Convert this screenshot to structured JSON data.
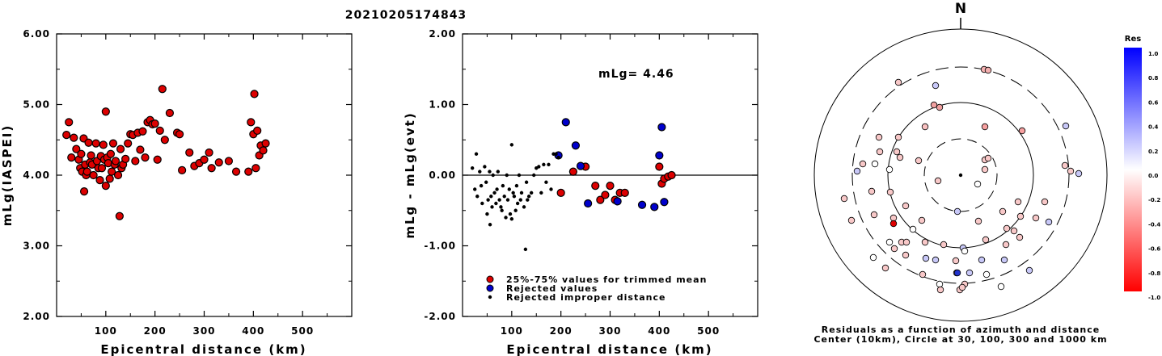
{
  "title": "20210205174843",
  "chart_data": [
    {
      "type": "scatter",
      "xlabel": "Epicentral distance (km)",
      "ylabel": "mLg(IASPEI)",
      "xlim": [
        0,
        600
      ],
      "ylim": [
        2.0,
        6.0
      ],
      "xticks": [
        "100",
        "200",
        "300",
        "400",
        "500"
      ],
      "yticks": [
        "2.00",
        "3.00",
        "4.00",
        "5.00",
        "6.00"
      ],
      "grid": false,
      "series": [
        {
          "color": "#dd0000",
          "points": [
            [
              20,
              4.57
            ],
            [
              25,
              4.75
            ],
            [
              30,
              4.25
            ],
            [
              35,
              4.53
            ],
            [
              40,
              4.37
            ],
            [
              45,
              4.22
            ],
            [
              48,
              4.1
            ],
            [
              50,
              4.3
            ],
            [
              52,
              4.05
            ],
            [
              55,
              4.52
            ],
            [
              56,
              3.77
            ],
            [
              58,
              4.15
            ],
            [
              60,
              4.0
            ],
            [
              62,
              4.05
            ],
            [
              65,
              4.46
            ],
            [
              68,
              4.18
            ],
            [
              70,
              4.28
            ],
            [
              72,
              4.15
            ],
            [
              75,
              4.0
            ],
            [
              80,
              4.45
            ],
            [
              82,
              4.2
            ],
            [
              85,
              4.1
            ],
            [
              88,
              3.93
            ],
            [
              90,
              4.27
            ],
            [
              92,
              4.1
            ],
            [
              95,
              4.43
            ],
            [
              97,
              4.22
            ],
            [
              100,
              3.85
            ],
            [
              100,
              4.9
            ],
            [
              103,
              4.25
            ],
            [
              105,
              4.17
            ],
            [
              108,
              3.95
            ],
            [
              110,
              4.3
            ],
            [
              112,
              4.05
            ],
            [
              115,
              4.45
            ],
            [
              118,
              4.15
            ],
            [
              120,
              4.2
            ],
            [
              125,
              4.0
            ],
            [
              128,
              3.42
            ],
            [
              130,
              4.37
            ],
            [
              132,
              4.1
            ],
            [
              135,
              4.15
            ],
            [
              140,
              4.23
            ],
            [
              145,
              4.45
            ],
            [
              150,
              4.58
            ],
            [
              155,
              4.57
            ],
            [
              160,
              4.2
            ],
            [
              165,
              4.6
            ],
            [
              170,
              4.36
            ],
            [
              175,
              4.62
            ],
            [
              180,
              4.25
            ],
            [
              185,
              4.75
            ],
            [
              190,
              4.78
            ],
            [
              195,
              4.72
            ],
            [
              200,
              4.73
            ],
            [
              205,
              4.22
            ],
            [
              210,
              4.63
            ],
            [
              215,
              5.22
            ],
            [
              220,
              4.5
            ],
            [
              230,
              4.88
            ],
            [
              245,
              4.6
            ],
            [
              250,
              4.58
            ],
            [
              255,
              4.07
            ],
            [
              270,
              4.32
            ],
            [
              280,
              4.13
            ],
            [
              290,
              4.17
            ],
            [
              300,
              4.22
            ],
            [
              310,
              4.32
            ],
            [
              315,
              4.1
            ],
            [
              330,
              4.18
            ],
            [
              350,
              4.2
            ],
            [
              365,
              4.05
            ],
            [
              390,
              4.05
            ],
            [
              395,
              4.75
            ],
            [
              400,
              4.58
            ],
            [
              402,
              5.15
            ],
            [
              405,
              4.1
            ],
            [
              408,
              4.63
            ],
            [
              412,
              4.28
            ],
            [
              415,
              4.42
            ],
            [
              420,
              4.35
            ],
            [
              425,
              4.45
            ]
          ]
        }
      ]
    },
    {
      "type": "scatter",
      "xlabel": "Epicentral distance (km)",
      "ylabel": "mLg - mLg(evt)",
      "xlim": [
        0,
        600
      ],
      "ylim": [
        -2.0,
        2.0
      ],
      "xticks": [
        "100",
        "200",
        "300",
        "400",
        "500"
      ],
      "yticks": [
        "-2.00",
        "-1.00",
        "0.00",
        "1.00",
        "2.00"
      ],
      "annotation": "mLg= 4.46",
      "grid": false,
      "series": [
        {
          "name": "25%-75% values for trimmed mean",
          "color": "#dd0000",
          "marker": "circle",
          "points": [
            [
              200,
              -0.25
            ],
            [
              225,
              0.05
            ],
            [
              250,
              0.12
            ],
            [
              270,
              -0.15
            ],
            [
              280,
              -0.35
            ],
            [
              290,
              -0.28
            ],
            [
              300,
              -0.15
            ],
            [
              310,
              -0.35
            ],
            [
              320,
              -0.25
            ],
            [
              330,
              -0.25
            ],
            [
              400,
              0.12
            ],
            [
              405,
              -0.12
            ],
            [
              410,
              -0.05
            ],
            [
              418,
              -0.02
            ],
            [
              425,
              0.0
            ]
          ]
        },
        {
          "name": "Rejected values",
          "color": "#0000cc",
          "marker": "circle",
          "points": [
            [
              195,
              0.28
            ],
            [
              210,
              0.75
            ],
            [
              230,
              0.42
            ],
            [
              240,
              0.13
            ],
            [
              255,
              -0.4
            ],
            [
              315,
              -0.37
            ],
            [
              365,
              -0.42
            ],
            [
              390,
              -0.45
            ],
            [
              400,
              0.28
            ],
            [
              405,
              0.68
            ],
            [
              410,
              -0.38
            ]
          ]
        },
        {
          "name": "Rejected improper distance",
          "color": "#000000",
          "marker": "dot",
          "points": [
            [
              20,
              0.1
            ],
            [
              25,
              -0.2
            ],
            [
              28,
              0.3
            ],
            [
              30,
              -0.3
            ],
            [
              35,
              0.05
            ],
            [
              38,
              -0.15
            ],
            [
              40,
              -0.4
            ],
            [
              45,
              0.12
            ],
            [
              48,
              -0.1
            ],
            [
              50,
              -0.55
            ],
            [
              52,
              -0.35
            ],
            [
              55,
              0.05
            ],
            [
              56,
              -0.7
            ],
            [
              58,
              -0.3
            ],
            [
              60,
              -0.45
            ],
            [
              62,
              0.0
            ],
            [
              65,
              -0.25
            ],
            [
              68,
              -0.4
            ],
            [
              70,
              -0.2
            ],
            [
              72,
              0.05
            ],
            [
              75,
              -0.35
            ],
            [
              78,
              -0.45
            ],
            [
              80,
              -0.5
            ],
            [
              82,
              -0.15
            ],
            [
              85,
              -0.3
            ],
            [
              88,
              -0.6
            ],
            [
              90,
              0.0
            ],
            [
              92,
              -0.35
            ],
            [
              95,
              -0.2
            ],
            [
              97,
              -0.55
            ],
            [
              100,
              -0.62
            ],
            [
              100,
              0.43
            ],
            [
              103,
              -0.25
            ],
            [
              105,
              -0.3
            ],
            [
              108,
              -0.5
            ],
            [
              110,
              -0.15
            ],
            [
              112,
              -0.4
            ],
            [
              115,
              0.0
            ],
            [
              118,
              -0.35
            ],
            [
              120,
              -0.25
            ],
            [
              125,
              -0.45
            ],
            [
              128,
              -1.05
            ],
            [
              130,
              -0.1
            ],
            [
              132,
              -0.35
            ],
            [
              135,
              -0.3
            ],
            [
              140,
              -0.25
            ],
            [
              145,
              0.0
            ],
            [
              150,
              0.1
            ],
            [
              155,
              0.12
            ],
            [
              160,
              -0.25
            ],
            [
              165,
              0.15
            ],
            [
              170,
              -0.1
            ],
            [
              175,
              0.15
            ],
            [
              180,
              -0.2
            ],
            [
              185,
              0.3
            ],
            [
              190,
              0.3
            ],
            [
              195,
              0.25
            ]
          ]
        }
      ],
      "legend": "bottom-center"
    },
    {
      "type": "polar",
      "north_label": "N",
      "caption_line1": "Residuals as a function of azimuth and distance",
      "caption_line2": "Center (10km), Circle at 30, 100, 300 and 1000 km",
      "colorbar_title": "Res",
      "colorbar_ticks": [
        "1.0",
        "0.8",
        "0.6",
        "0.4",
        "0.2",
        "0.0",
        "-0.2",
        "-0.4",
        "-0.6",
        "-0.8",
        "-1.0"
      ]
    }
  ]
}
